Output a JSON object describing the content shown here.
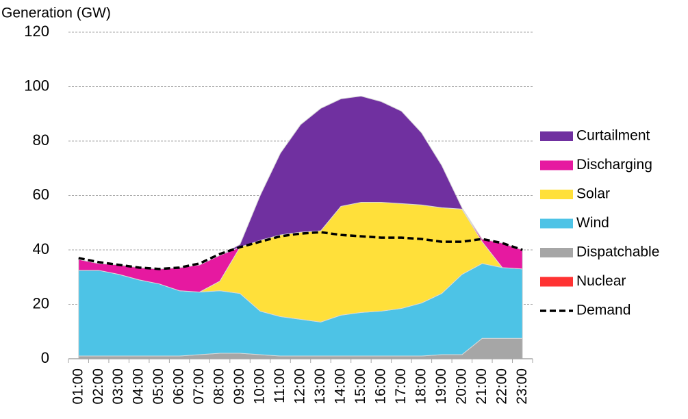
{
  "chart_data": {
    "type": "stacked_area",
    "y_label": "Generation (GW)",
    "categories": [
      "01:00",
      "02:00",
      "03:00",
      "04:00",
      "05:00",
      "06:00",
      "07:00",
      "08:00",
      "09:00",
      "10:00",
      "11:00",
      "12:00",
      "13:00",
      "14:00",
      "15:00",
      "16:00",
      "17:00",
      "18:00",
      "19:00",
      "20:00",
      "21:00",
      "22:00",
      "23:00"
    ],
    "ylim": [
      0,
      120
    ],
    "yticks": [
      0,
      20,
      40,
      60,
      80,
      100,
      120
    ],
    "grid": true,
    "legend": "right",
    "series": [
      {
        "name": "Nuclear",
        "color": "#ff3333",
        "kind": "area",
        "values": [
          0,
          0,
          0,
          0,
          0,
          0,
          0,
          0,
          0,
          0,
          0,
          0,
          0,
          0,
          0,
          0,
          0,
          0,
          0,
          0,
          0,
          0,
          0
        ]
      },
      {
        "name": "Dispatchable",
        "color": "#a6a6a6",
        "kind": "area",
        "values": [
          1,
          1,
          1,
          1,
          1,
          1,
          1.5,
          2,
          2,
          1.5,
          1,
          1,
          1,
          1,
          1,
          1,
          1,
          1,
          1.5,
          1.5,
          7.5,
          7.5,
          7.5
        ]
      },
      {
        "name": "Wind",
        "color": "#4dc3e6",
        "kind": "area",
        "values": [
          31.5,
          31.5,
          30,
          28,
          26.5,
          24,
          23,
          23,
          22,
          16,
          14.5,
          13.5,
          12.5,
          15,
          16,
          16.5,
          17.5,
          19.5,
          22.5,
          29.5,
          27.5,
          26,
          25.5
        ]
      },
      {
        "name": "Solar",
        "color": "#ffe03a",
        "kind": "area",
        "values": [
          0,
          0,
          0,
          0,
          0,
          0,
          0,
          3.5,
          17,
          26,
          30,
          32,
          33.5,
          40,
          40.5,
          40,
          38.5,
          36,
          31.5,
          24,
          8,
          0,
          0
        ]
      },
      {
        "name": "Discharging",
        "color": "#e619a0",
        "kind": "area",
        "values": [
          4,
          2.5,
          3.5,
          4.5,
          5.5,
          8.5,
          10,
          9.5,
          0,
          0,
          0,
          0,
          0,
          0,
          0,
          0,
          0,
          0,
          0,
          0,
          1,
          9,
          7
        ]
      },
      {
        "name": "Curtailment",
        "color": "#7030a0",
        "kind": "area",
        "values": [
          0,
          0,
          0,
          0,
          0,
          0,
          0,
          0,
          1,
          16.5,
          30,
          39.5,
          45,
          39.5,
          39,
          37,
          34,
          26.5,
          15.5,
          0.5,
          0,
          0,
          0
        ]
      },
      {
        "name": "Demand",
        "color": "#000000",
        "kind": "line",
        "values": [
          37,
          35.5,
          34.5,
          33.5,
          33,
          33.5,
          35,
          38.5,
          41,
          43,
          45,
          46,
          46.5,
          45.5,
          45,
          44.5,
          44.5,
          44,
          43,
          43,
          44,
          42.5,
          40
        ]
      }
    ]
  }
}
